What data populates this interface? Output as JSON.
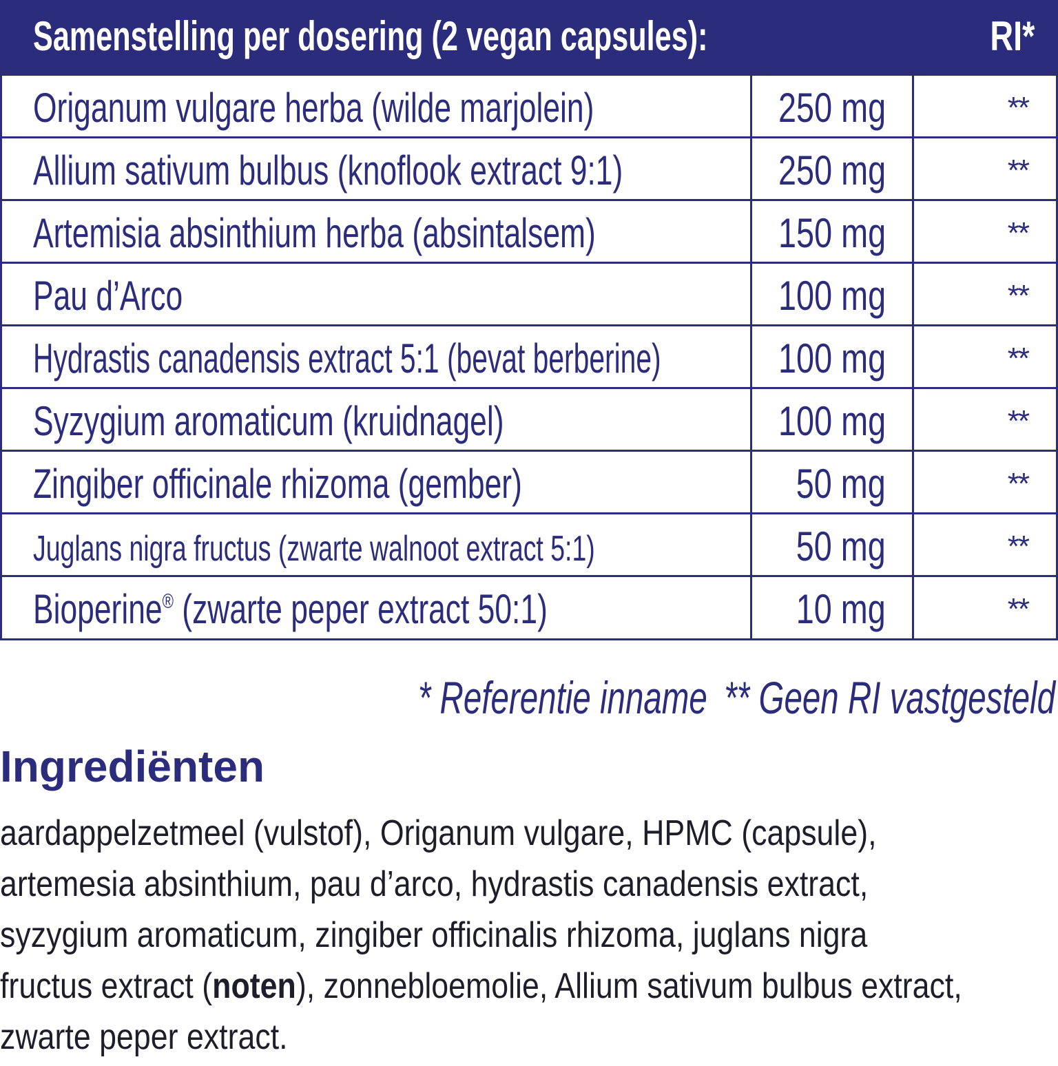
{
  "header": {
    "title": "Samenstelling per dosering (2 vegan capsules):",
    "ri_label": "RI*"
  },
  "table": {
    "rows": [
      {
        "name": "Origanum vulgare herba (wilde marjolein)",
        "amount": "250 mg",
        "ri": "**"
      },
      {
        "name": "Allium sativum bulbus (knoflook extract 9:1)",
        "amount": "250 mg",
        "ri": "**"
      },
      {
        "name": "Artemisia absinthium herba (absintalsem)",
        "amount": "150 mg",
        "ri": "**"
      },
      {
        "name": "Pau d’Arco",
        "amount": "100 mg",
        "ri": "**"
      },
      {
        "name": "Hydrastis canadensis extract 5:1 (bevat berberine)",
        "amount": "100 mg",
        "ri": "**"
      },
      {
        "name": "Syzygium aromaticum (kruidnagel)",
        "amount": "100 mg",
        "ri": "**"
      },
      {
        "name": "Zingiber officinale rhizoma (gember)",
        "amount": "50 mg",
        "ri": "**"
      },
      {
        "name": "Juglans nigra fructus (zwarte walnoot extract 5:1)",
        "amount": "50 mg",
        "ri": "**"
      },
      {
        "name_main": "Bioperine",
        "name_mark": "®",
        "name_rest": " (zwarte peper extract 50:1)",
        "amount": "10 mg",
        "ri": "**"
      }
    ]
  },
  "footnote": {
    "ri_definition": "* Referentie inname",
    "no_ri": "** Geen RI vastgesteld"
  },
  "ingredients": {
    "heading": "Ingrediënten",
    "line1": "aardappelzetmeel (vulstof), Origanum vulgare, HPMC (capsule),",
    "line2": "artemesia absinthium, pau d’arco, hydrastis canadensis extract,",
    "line3": "syzygium aromaticum, zingiber officinalis rhizoma, juglans nigra",
    "line4_pre": "fructus extract (",
    "line4_allergen": "noten",
    "line4_post": "), zonnebloemolie, Allium sativum bulbus extract,",
    "line5": "zwarte peper extract."
  },
  "colors": {
    "brand_navy": "#2b2d7c",
    "text_dark": "#1e1e2a",
    "background": "#ffffff"
  }
}
